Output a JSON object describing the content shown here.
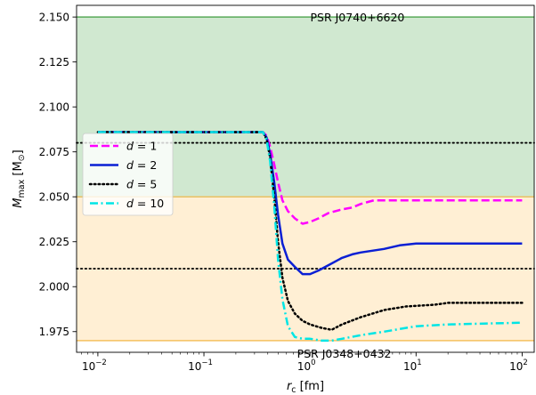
{
  "chart_data": {
    "type": "line",
    "title": "",
    "xlabel": "r_c [fm]",
    "xlabel_parts": {
      "main": "r",
      "sub": "c",
      "unit": " [fm]"
    },
    "ylabel_parts": {
      "main": "M",
      "sub": "max",
      "unit": " [M",
      "unit_sub": "⊙",
      "close": "]"
    },
    "xscale": "log",
    "xlim": [
      0.0063,
      130
    ],
    "ylim": [
      1.9635,
      2.1565
    ],
    "xticks": [
      {
        "value": 0.01,
        "label": "10",
        "exp": "−2"
      },
      {
        "value": 0.1,
        "label": "10",
        "exp": "−1"
      },
      {
        "value": 1,
        "label": "10",
        "exp": "0"
      },
      {
        "value": 10,
        "label": "10",
        "exp": "1"
      },
      {
        "value": 100,
        "label": "10",
        "exp": "2"
      }
    ],
    "yticks": [
      {
        "value": 1.975,
        "label": "1.975"
      },
      {
        "value": 2.0,
        "label": "2.000"
      },
      {
        "value": 2.025,
        "label": "2.025"
      },
      {
        "value": 2.05,
        "label": "2.050"
      },
      {
        "value": 2.075,
        "label": "2.075"
      },
      {
        "value": 2.1,
        "label": "2.100"
      },
      {
        "value": 2.125,
        "label": "2.125"
      },
      {
        "value": 2.15,
        "label": "2.150"
      }
    ],
    "bands": [
      {
        "name": "PSR J0740+6620",
        "lower": 2.05,
        "upper": 2.15,
        "fill": "#a9d5a9",
        "edge": "#5aaa5a"
      },
      {
        "name": "PSR J0348+0432",
        "lower": 1.97,
        "upper": 2.05,
        "fill": "#ffe1b0",
        "edge": "#f5c060"
      }
    ],
    "hlines": [
      {
        "y": 2.08,
        "color": "#000000",
        "style": "dotted"
      },
      {
        "y": 2.01,
        "color": "#000000",
        "style": "dotted"
      }
    ],
    "annotations": [
      {
        "text": "PSR J0740+6620",
        "x": 2.8,
        "y": 2.152
      },
      {
        "text": "PSR J0348+0432",
        "x": 2.1,
        "y": 1.965
      }
    ],
    "legend_position": "upper-left",
    "series": [
      {
        "name": "d = 1",
        "symbol": "d",
        "value": "1",
        "color": "#ff00ff",
        "style": "dashed",
        "points": [
          [
            0.01,
            2.086
          ],
          [
            0.3,
            2.086
          ],
          [
            0.36,
            2.086
          ],
          [
            0.39,
            2.084
          ],
          [
            0.42,
            2.078
          ],
          [
            0.46,
            2.068
          ],
          [
            0.5,
            2.058
          ],
          [
            0.55,
            2.048
          ],
          [
            0.62,
            2.042
          ],
          [
            0.72,
            2.038
          ],
          [
            0.85,
            2.035
          ],
          [
            1.0,
            2.036
          ],
          [
            1.2,
            2.038
          ],
          [
            1.5,
            2.041
          ],
          [
            2.0,
            2.043
          ],
          [
            2.5,
            2.044
          ],
          [
            3.0,
            2.046
          ],
          [
            4.0,
            2.048
          ],
          [
            10,
            2.048
          ],
          [
            100,
            2.048
          ]
        ]
      },
      {
        "name": "d = 2",
        "symbol": "d",
        "value": "2",
        "color": "#0a1fd4",
        "style": "solid",
        "points": [
          [
            0.01,
            2.086
          ],
          [
            0.3,
            2.086
          ],
          [
            0.36,
            2.086
          ],
          [
            0.39,
            2.083
          ],
          [
            0.42,
            2.074
          ],
          [
            0.46,
            2.058
          ],
          [
            0.5,
            2.04
          ],
          [
            0.55,
            2.024
          ],
          [
            0.62,
            2.015
          ],
          [
            0.72,
            2.011
          ],
          [
            0.85,
            2.007
          ],
          [
            1.0,
            2.007
          ],
          [
            1.2,
            2.009
          ],
          [
            1.5,
            2.012
          ],
          [
            2.0,
            2.016
          ],
          [
            2.5,
            2.018
          ],
          [
            3.0,
            2.019
          ],
          [
            5.0,
            2.021
          ],
          [
            7.0,
            2.023
          ],
          [
            10,
            2.024
          ],
          [
            100,
            2.024
          ]
        ]
      },
      {
        "name": "d = 5",
        "symbol": "d",
        "value": "5",
        "color": "#000000",
        "style": "dotted",
        "points": [
          [
            0.01,
            2.086
          ],
          [
            0.3,
            2.086
          ],
          [
            0.36,
            2.086
          ],
          [
            0.39,
            2.082
          ],
          [
            0.42,
            2.072
          ],
          [
            0.46,
            2.05
          ],
          [
            0.5,
            2.025
          ],
          [
            0.55,
            2.005
          ],
          [
            0.62,
            1.992
          ],
          [
            0.72,
            1.985
          ],
          [
            0.85,
            1.981
          ],
          [
            1.0,
            1.979
          ],
          [
            1.3,
            1.977
          ],
          [
            1.6,
            1.976
          ],
          [
            2.0,
            1.979
          ],
          [
            3.0,
            1.983
          ],
          [
            5.0,
            1.987
          ],
          [
            8.0,
            1.989
          ],
          [
            15,
            1.99
          ],
          [
            20,
            1.991
          ],
          [
            100,
            1.991
          ]
        ]
      },
      {
        "name": "d = 10",
        "symbol": "d",
        "value": "10",
        "color": "#00e5e5",
        "style": "dashdot",
        "points": [
          [
            0.01,
            2.086
          ],
          [
            0.3,
            2.086
          ],
          [
            0.36,
            2.086
          ],
          [
            0.39,
            2.082
          ],
          [
            0.42,
            2.07
          ],
          [
            0.46,
            2.045
          ],
          [
            0.5,
            2.015
          ],
          [
            0.55,
            1.993
          ],
          [
            0.62,
            1.978
          ],
          [
            0.72,
            1.972
          ],
          [
            0.85,
            1.971
          ],
          [
            1.0,
            1.971
          ],
          [
            1.3,
            1.97
          ],
          [
            1.6,
            1.97
          ],
          [
            2.0,
            1.971
          ],
          [
            3.0,
            1.973
          ],
          [
            5.0,
            1.975
          ],
          [
            10,
            1.978
          ],
          [
            20,
            1.979
          ],
          [
            100,
            1.98
          ]
        ]
      }
    ]
  }
}
